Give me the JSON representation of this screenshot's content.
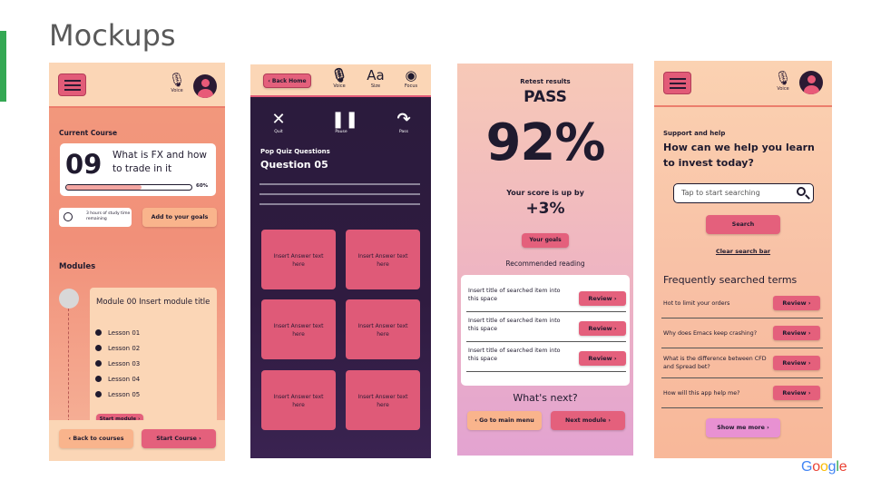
{
  "slide": {
    "title": "Mockups",
    "logo": {
      "g1": "G",
      "g2": "o",
      "g3": "o",
      "g4": "g",
      "g5": "l",
      "g6": "e"
    }
  },
  "phone1": {
    "voice_label": "Voice",
    "current_course_label": "Current Course",
    "course_number": "09",
    "course_title": "What is FX and how to trade in it",
    "progress_percent": 60,
    "progress_label": "60%",
    "study_time": "3 hours of study time remaining",
    "add_goals_button": "Add to your goals",
    "modules_label": "Modules",
    "module_title": "Module 00 Insert module title",
    "lessons": [
      "Lesson 01",
      "Lesson 02",
      "Lesson 03",
      "Lesson 04",
      "Lesson 05"
    ],
    "start_module_button": "Start module",
    "back_courses_button": "Back to courses",
    "start_course_button": "Start Course"
  },
  "phone2": {
    "back_home_button": "Back Home",
    "voice_label": "Voice",
    "size_glyph": "Aa",
    "size_label": "Size",
    "focus_label": "Focus",
    "quit_label": "Quit",
    "pause_label": "Pause",
    "pass_label": "Pass",
    "quiz_label": "Pop Quiz Questions",
    "question_label": "Question 05",
    "answers": [
      "Insert Answer text here",
      "Insert Answer text here",
      "Insert Answer text here",
      "Insert Answer text here",
      "Insert Answer text here",
      "Insert Answer text here"
    ]
  },
  "phone3": {
    "retest_label": "Retest results",
    "result": "PASS",
    "score": "92%",
    "score_up_label": "Your score is up by",
    "score_delta": "+3%",
    "goals_button": "Your goals",
    "recommended_label": "Recommended reading",
    "readings": [
      {
        "text": "Insert title of searched item into this space",
        "button": "Review"
      },
      {
        "text": "Insert title of searched item into this space",
        "button": "Review"
      },
      {
        "text": "Insert title of searched item into this space",
        "button": "Review"
      }
    ],
    "whats_next": "What's next?",
    "main_menu_button": "Go to main menu",
    "next_module_button": "Next module"
  },
  "phone4": {
    "voice_label": "Voice",
    "support_label": "Support and help",
    "headline": "How can we help you learn to invest today?",
    "search_placeholder": "Tap to start searching",
    "search_button": "Search",
    "clear_link": "Clear search bar",
    "faq_title": "Frequently searched terms",
    "faqs": [
      {
        "text": "Hot to limit your orders",
        "button": "Review"
      },
      {
        "text": "Why does Emacs keep crashing?",
        "button": "Review"
      },
      {
        "text": "What is the difference between CFD and Spread bet?",
        "button": "Review"
      },
      {
        "text": "How will this app help me?",
        "button": "Review"
      }
    ],
    "show_more_button": "Show me more"
  },
  "colors": {
    "accent_green": "#34a853",
    "pink": "#e4607c",
    "peach": "#fbd6b6",
    "dark": "#1f1a2e",
    "quiz_bg": "#2a1b3c"
  }
}
